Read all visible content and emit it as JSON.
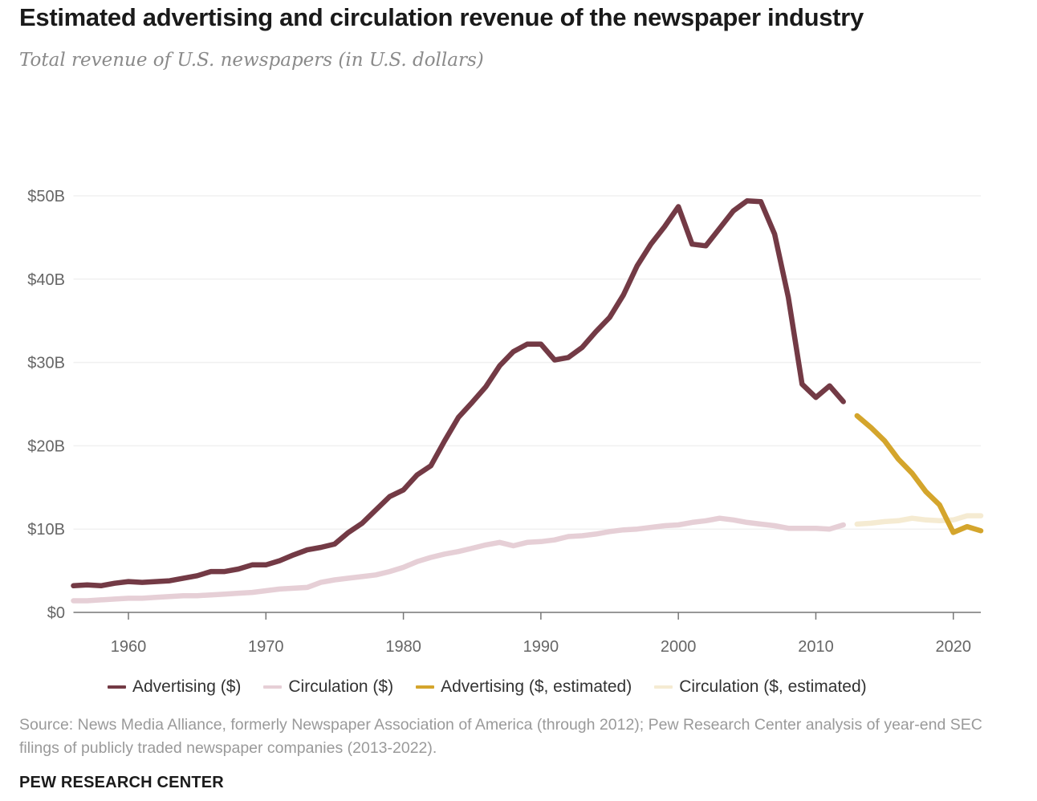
{
  "header": {
    "title": "Estimated advertising and circulation revenue of the newspaper industry",
    "subtitle": "Total revenue of U.S. newspapers (in U.S. dollars)"
  },
  "footer": {
    "source": "Source: News Media Alliance, formerly Newspaper Association of America (through 2012); Pew Research Center analysis of year-end SEC filings of publicly traded newspaper companies (2013-2022).",
    "brand": "PEW RESEARCH CENTER"
  },
  "chart_data": {
    "type": "line",
    "title": "Estimated advertising and circulation revenue of the newspaper industry",
    "subtitle": "Total revenue of U.S. newspapers (in U.S. dollars)",
    "xlabel": "",
    "ylabel": "",
    "xlim": [
      1956,
      2022
    ],
    "ylim": [
      0,
      50
    ],
    "unit": "billions of U.S. dollars",
    "grid": true,
    "legend_position": "bottom",
    "y_ticks": [
      {
        "value": 0,
        "label": "$0"
      },
      {
        "value": 10,
        "label": "$10B"
      },
      {
        "value": 20,
        "label": "$20B"
      },
      {
        "value": 30,
        "label": "$30B"
      },
      {
        "value": 40,
        "label": "$40B"
      },
      {
        "value": 50,
        "label": "$50B"
      }
    ],
    "x_ticks": [
      {
        "value": 1960,
        "label": "1960"
      },
      {
        "value": 1970,
        "label": "1970"
      },
      {
        "value": 1980,
        "label": "1980"
      },
      {
        "value": 1990,
        "label": "1990"
      },
      {
        "value": 2000,
        "label": "2000"
      },
      {
        "value": 2010,
        "label": "2010"
      },
      {
        "value": 2020,
        "label": "2020"
      }
    ],
    "series": [
      {
        "name": "Advertising ($)",
        "color": "#733a45",
        "x": [
          1956,
          1957,
          1958,
          1959,
          1960,
          1961,
          1962,
          1963,
          1964,
          1965,
          1966,
          1967,
          1968,
          1969,
          1970,
          1971,
          1972,
          1973,
          1974,
          1975,
          1976,
          1977,
          1978,
          1979,
          1980,
          1981,
          1982,
          1983,
          1984,
          1985,
          1986,
          1987,
          1988,
          1989,
          1990,
          1991,
          1992,
          1993,
          1994,
          1995,
          1996,
          1997,
          1998,
          1999,
          2000,
          2001,
          2002,
          2003,
          2004,
          2005,
          2006,
          2007,
          2008,
          2009,
          2010,
          2011,
          2012
        ],
        "values": [
          3.2,
          3.3,
          3.2,
          3.5,
          3.7,
          3.6,
          3.7,
          3.8,
          4.1,
          4.4,
          4.9,
          4.9,
          5.2,
          5.7,
          5.7,
          6.2,
          6.9,
          7.5,
          7.8,
          8.2,
          9.6,
          10.7,
          12.3,
          13.9,
          14.7,
          16.5,
          17.6,
          20.6,
          23.4,
          25.2,
          27.1,
          29.6,
          31.3,
          32.2,
          32.2,
          30.3,
          30.6,
          31.8,
          33.7,
          35.4,
          38.1,
          41.6,
          44.2,
          46.3,
          48.7,
          44.2,
          44.0,
          46.1,
          48.2,
          49.4,
          49.3,
          45.4,
          37.8,
          27.4,
          25.8,
          27.2,
          25.3
        ]
      },
      {
        "name": "Circulation ($)",
        "color": "#e6cfd6",
        "x": [
          1956,
          1957,
          1958,
          1959,
          1960,
          1961,
          1962,
          1963,
          1964,
          1965,
          1966,
          1967,
          1968,
          1969,
          1970,
          1971,
          1972,
          1973,
          1974,
          1975,
          1976,
          1977,
          1978,
          1979,
          1980,
          1981,
          1982,
          1983,
          1984,
          1985,
          1986,
          1987,
          1988,
          1989,
          1990,
          1991,
          1992,
          1993,
          1994,
          1995,
          1996,
          1997,
          1998,
          1999,
          2000,
          2001,
          2002,
          2003,
          2004,
          2005,
          2006,
          2007,
          2008,
          2009,
          2010,
          2011,
          2012
        ],
        "values": [
          1.4,
          1.4,
          1.5,
          1.6,
          1.7,
          1.7,
          1.8,
          1.9,
          2.0,
          2.0,
          2.1,
          2.2,
          2.3,
          2.4,
          2.6,
          2.8,
          2.9,
          3.0,
          3.6,
          3.9,
          4.1,
          4.3,
          4.5,
          4.9,
          5.4,
          6.1,
          6.6,
          7.0,
          7.3,
          7.7,
          8.1,
          8.4,
          8.0,
          8.4,
          8.5,
          8.7,
          9.1,
          9.2,
          9.4,
          9.7,
          9.9,
          10.0,
          10.2,
          10.4,
          10.5,
          10.8,
          11.0,
          11.3,
          11.1,
          10.8,
          10.6,
          10.4,
          10.1,
          10.1,
          10.1,
          10.0,
          10.5
        ]
      },
      {
        "name": "Advertising ($, estimated)",
        "color": "#d4a52c",
        "x": [
          2013,
          2014,
          2015,
          2016,
          2017,
          2018,
          2019,
          2020,
          2021,
          2022
        ],
        "values": [
          23.6,
          22.2,
          20.6,
          18.4,
          16.7,
          14.5,
          12.9,
          9.6,
          10.3,
          9.8
        ]
      },
      {
        "name": "Circulation ($, estimated)",
        "color": "#f5ebd2",
        "x": [
          2013,
          2014,
          2015,
          2016,
          2017,
          2018,
          2019,
          2020,
          2021,
          2022
        ],
        "values": [
          10.6,
          10.7,
          10.9,
          11.0,
          11.3,
          11.1,
          11.0,
          11.1,
          11.6,
          11.6
        ]
      }
    ]
  }
}
